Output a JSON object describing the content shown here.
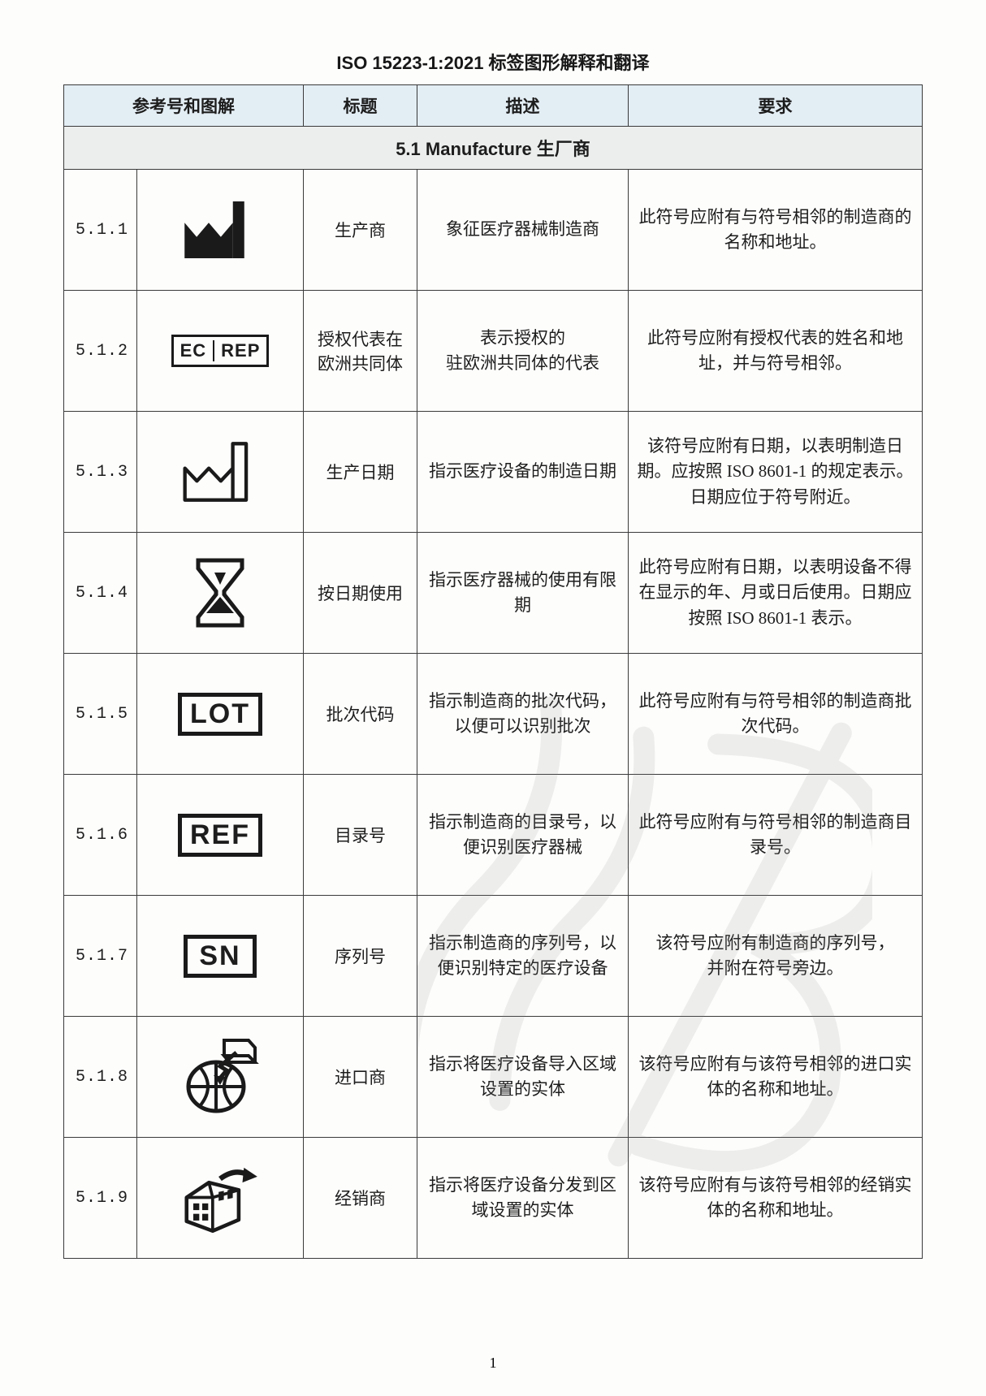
{
  "doc_title": "ISO 15223-1:2021 标签图形解释和翻译",
  "page_number": "1",
  "columns": [
    "参考号和图解",
    "标题",
    "描述",
    "要求"
  ],
  "section_header": "5.1 Manufacture  生厂商",
  "colors": {
    "border": "#3a3a3a",
    "header_bg": "#e3edf4",
    "section_bg": "#eceeee",
    "page_bg": "#fdfdfc",
    "text": "#1d1d1d",
    "watermark": "#8a8a8a"
  },
  "rows": [
    {
      "ref": "5.1.1",
      "icon": "manufacturer",
      "title": "生产商",
      "desc": "象征医疗器械制造商",
      "req": "此符号应附有与符号相邻的制造商的名称和地址。"
    },
    {
      "ref": "5.1.2",
      "icon": "ec-rep",
      "title": "授权代表在欧洲共同体",
      "desc": "表示授权的\n驻欧洲共同体的代表",
      "req": "此符号应附有授权代表的姓名和地址，并与符号相邻。"
    },
    {
      "ref": "5.1.3",
      "icon": "mfg-date",
      "title": "生产日期",
      "desc": "指示医疗设备的制造日期",
      "req": "该符号应附有日期，以表明制造日期。应按照 ISO 8601-1 的规定表示。日期应位于符号附近。"
    },
    {
      "ref": "5.1.4",
      "icon": "hourglass",
      "title": "按日期使用",
      "desc": "指示医疗器械的使用有限期",
      "req": "此符号应附有日期，以表明设备不得在显示的年、月或日后使用。日期应按照 ISO 8601-1 表示。"
    },
    {
      "ref": "5.1.5",
      "icon": "lot",
      "title": "批次代码",
      "desc": "指示制造商的批次代码，\n以便可以识别批次",
      "req": "此符号应附有与符号相邻的制造商批次代码。"
    },
    {
      "ref": "5.1.6",
      "icon": "ref",
      "title": "目录号",
      "desc": "指示制造商的目录号，以便识别医疗器械",
      "req": "此符号应附有与符号相邻的制造商目录号。"
    },
    {
      "ref": "5.1.7",
      "icon": "sn",
      "title": "序列号",
      "desc": "指示制造商的序列号，以便识别特定的医疗设备",
      "req": "该符号应附有制造商的序列号，\n并附在符号旁边。"
    },
    {
      "ref": "5.1.8",
      "icon": "importer",
      "title": "进口商",
      "desc": "指示将医疗设备导入区域设置的实体",
      "req": "该符号应附有与该符号相邻的进口实体的名称和地址。"
    },
    {
      "ref": "5.1.9",
      "icon": "distributor",
      "title": "经销商",
      "desc": "指示将医疗设备分发到区域设置的实体",
      "req": "该符号应附有与该符号相邻的经销实体的名称和地址。"
    }
  ],
  "icon_labels": {
    "ec-rep": [
      "EC",
      "REP"
    ],
    "lot": "LOT",
    "ref": "REF",
    "sn": "SN"
  }
}
